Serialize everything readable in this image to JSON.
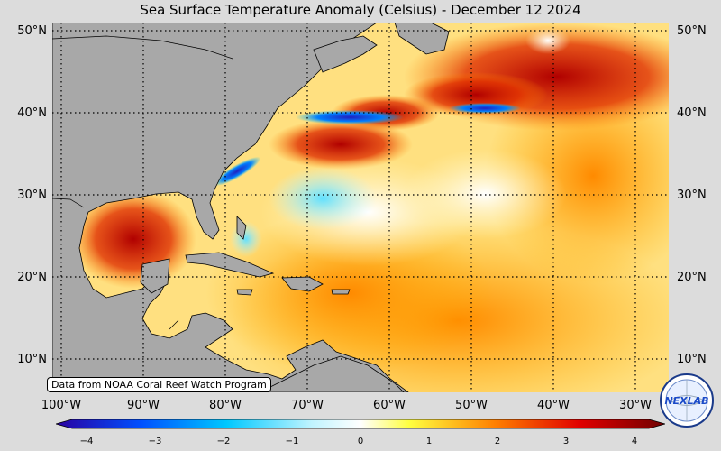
{
  "title": "Sea Surface Temperature Anomaly (Celsius) - December 12 2024",
  "lat_labels": [
    "50°N",
    "40°N",
    "30°N",
    "20°N",
    "10°N"
  ],
  "lon_labels": [
    "100°W",
    "90°W",
    "80°W",
    "70°W",
    "60°W",
    "50°W",
    "40°W",
    "30°W"
  ],
  "credit": "Data from NOAA Coral Reef Watch Program",
  "colorbar": {
    "ticks": [
      "−4",
      "−3",
      "−2",
      "−1",
      "0",
      "1",
      "2",
      "3",
      "4"
    ],
    "range": [
      -4,
      4
    ],
    "colors": [
      "#2a00a0",
      "#0050ff",
      "#00c8ff",
      "#ffffff",
      "#ffff40",
      "#ff8000",
      "#e00000",
      "#700000"
    ]
  },
  "logo_text": "NEXLAB",
  "colors": {
    "land": "#a8a8a8",
    "background": "#dcdcdc"
  }
}
